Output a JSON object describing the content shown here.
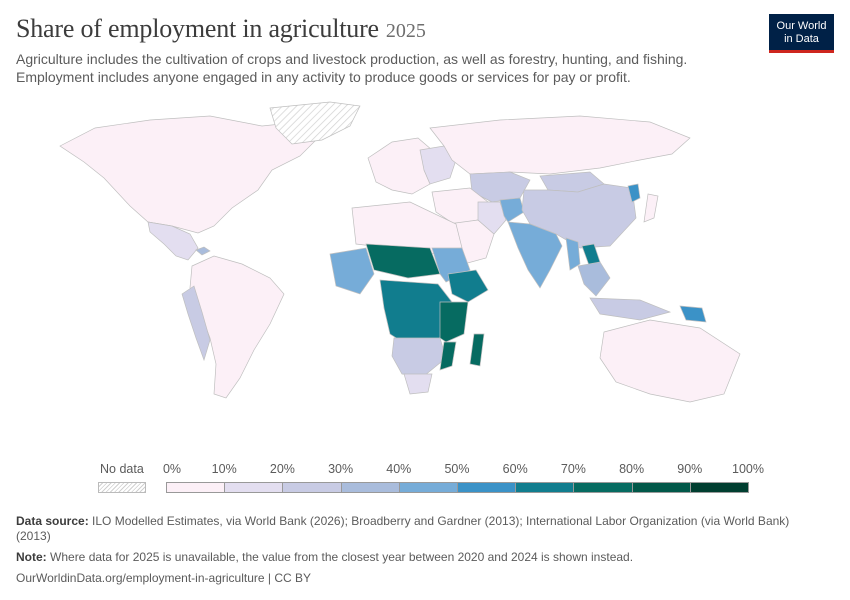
{
  "header": {
    "title": "Share of employment in agriculture",
    "year": "2025",
    "subtitle_line1": "Agriculture includes the cultivation of crops and livestock production, as well as forestry, hunting, and fishing.",
    "subtitle_line2": "Employment includes anyone engaged in any activity to produce goods or services for pay or profit."
  },
  "logo": {
    "line1": "Our World",
    "line2": "in Data",
    "bg_color": "#002147",
    "accent_color": "#ce261e"
  },
  "legend": {
    "no_data_label": "No data",
    "ticks": [
      "0%",
      "10%",
      "20%",
      "30%",
      "40%",
      "50%",
      "60%",
      "70%",
      "80%",
      "90%",
      "100%"
    ],
    "bin_colors": [
      "#fcf0f7",
      "#e3def0",
      "#c8cbe4",
      "#a9bcdc",
      "#76acd8",
      "#3b92c7",
      "#117d8e",
      "#066b61",
      "#015849",
      "#003e30"
    ]
  },
  "map": {
    "no_data_regions": [
      "Greenland"
    ],
    "approx_values": {
      "North America": 2,
      "Central America": 15,
      "Caribbean": 30,
      "South America": 8,
      "Andes": 25,
      "Europe": 5,
      "Eastern Europe": 15,
      "Russia": 5,
      "Central Asia": 20,
      "Middle East": 8,
      "Arabian Peninsula": 4,
      "Afghanistan": 45,
      "Iran": 15,
      "India": 43,
      "China": 22,
      "Mongolia": 25,
      "North Korea": 55,
      "Southeast Asia": 35,
      "Laos": 65,
      "Myanmar": 48,
      "Indonesia": 28,
      "Papua New Guinea": 57,
      "Australia": 2,
      "North Africa": 5,
      "Sahel": 70,
      "West Africa": 45,
      "Sudan": 40,
      "Ethiopia": 63,
      "East Africa": 72,
      "Central Africa": 60,
      "Southern Africa": 20,
      "South Africa": 18,
      "Madagascar": 72,
      "Mozambique": 70,
      "Japan": 3
    }
  },
  "footer": {
    "source_label": "Data source:",
    "source_text": "ILO Modelled Estimates, via World Bank (2026); Broadberry and Gardner (2013); International Labor Organization (via World Bank) (2013)",
    "note_label": "Note:",
    "note_text": "Where data for 2025 is unavailable, the value from the closest year between 2020 and 2024 is shown instead.",
    "url_text": "OurWorldinData.org/employment-in-agriculture | CC BY"
  }
}
